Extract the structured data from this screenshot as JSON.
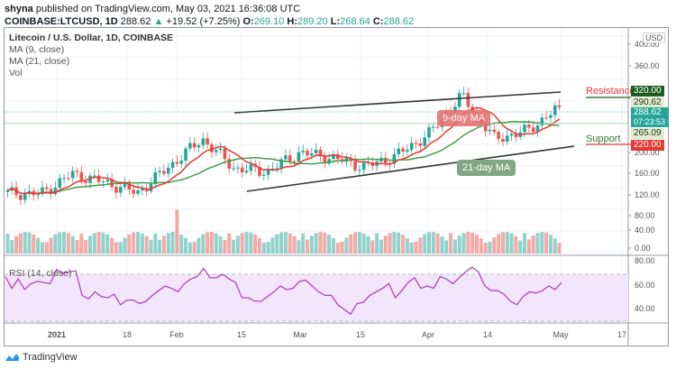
{
  "header": {
    "author": "shyna",
    "published_text": "published on TradingView.com, May 03, 2021 16:36:08 UTC",
    "symbol": "COINBASE:LTCUSD, 1D",
    "last": "288.62",
    "change": "+19.52 (+7.25%)",
    "open_label": "O:",
    "open": "269.10",
    "high_label": "H:",
    "high": "289.20",
    "low_label": "L:",
    "low": "268.64",
    "close_label": "C:",
    "close": "288.62"
  },
  "legend": {
    "title": "Litecoin / U.S. Dollar, 1D, COINBASE",
    "ma9": "MA (9, close)",
    "ma21": "MA (21, close)",
    "vol": "Vol",
    "rsi": "RSI (14, close)"
  },
  "annotations": {
    "resistance": "Resistance",
    "support": "Support",
    "ma9_callout": "9-day MA",
    "ma21_callout": "21-day MA"
  },
  "price_axis": {
    "currency": "USD",
    "ticks": [
      "400.00",
      "360.00",
      "200.00",
      "160.00",
      "120.00",
      "80.00",
      "40.00",
      "0.00"
    ],
    "resistance_tag": "320.00",
    "high_tag": "290.62",
    "last_tag": "288.62",
    "countdown": "07:23:53",
    "ma_tag": "265.09",
    "support_tag": "220.00"
  },
  "rsi_axis": {
    "ticks": [
      "80.00",
      "60.00",
      "40.00"
    ]
  },
  "time_axis": {
    "ticks": [
      "2021",
      "18",
      "Feb",
      "15",
      "Mar",
      "15",
      "Apr",
      "14",
      "May",
      "17"
    ]
  },
  "footer": {
    "brand": "TradingView"
  },
  "colors": {
    "up": "#26a69a",
    "down": "#ef5350",
    "ma9": "#e53935",
    "ma21": "#43a047",
    "rsi": "#ab47bc",
    "rsi_band": "#f3e5fc",
    "resistance": "#1b5e20",
    "support": "#e53935"
  },
  "chart_data": {
    "type": "candlestick",
    "title": "Litecoin / U.S. Dollar, 1D, COINBASE",
    "symbol": "LTCUSD",
    "timeframe": "1D",
    "x_ticks": [
      "2021",
      "18",
      "Feb",
      "15",
      "Mar",
      "15",
      "Apr",
      "14",
      "May",
      "17"
    ],
    "ylim": [
      0,
      420
    ],
    "last_close": 288.62,
    "ohlc_last": {
      "open": 269.1,
      "high": 289.2,
      "low": 268.64,
      "close": 288.62
    },
    "levels": {
      "resistance": 320.0,
      "support": 220.0,
      "high_marker": 290.62,
      "ma_marker": 265.09
    },
    "approx_close_series": [
      {
        "date": "2020-12-25",
        "close": 130
      },
      {
        "date": "2021-01-01",
        "close": 128
      },
      {
        "date": "2021-01-10",
        "close": 165
      },
      {
        "date": "2021-01-18",
        "close": 150
      },
      {
        "date": "2021-02-01",
        "close": 130
      },
      {
        "date": "2021-02-10",
        "close": 180
      },
      {
        "date": "2021-02-18",
        "close": 230
      },
      {
        "date": "2021-02-24",
        "close": 175
      },
      {
        "date": "2021-03-01",
        "close": 170
      },
      {
        "date": "2021-03-10",
        "close": 205
      },
      {
        "date": "2021-03-20",
        "close": 195
      },
      {
        "date": "2021-03-27",
        "close": 178
      },
      {
        "date": "2021-04-01",
        "close": 200
      },
      {
        "date": "2021-04-10",
        "close": 240
      },
      {
        "date": "2021-04-16",
        "close": 310
      },
      {
        "date": "2021-04-23",
        "close": 230
      },
      {
        "date": "2021-04-27",
        "close": 245
      },
      {
        "date": "2021-05-03",
        "close": 288.62
      }
    ],
    "indicators": {
      "ma9": "MA (9, close)",
      "ma21": "MA (21, close)",
      "rsi14": {
        "bands": [
          30,
          70
        ],
        "ylim": [
          20,
          85
        ],
        "last": 63,
        "approx_values": [
          68,
          58,
          66,
          57,
          62,
          64,
          63,
          62,
          74,
          71,
          72,
          73,
          52,
          49,
          55,
          51,
          50,
          53,
          44,
          48,
          48,
          45,
          47,
          52,
          56,
          60,
          58,
          55,
          62,
          66,
          68,
          75,
          67,
          67,
          70,
          66,
          63,
          50,
          50,
          47,
          47,
          51,
          55,
          60,
          57,
          58,
          64,
          65,
          60,
          55,
          52,
          52,
          44,
          40,
          36,
          45,
          46,
          52,
          55,
          58,
          62,
          50,
          56,
          63,
          67,
          58,
          60,
          58,
          68,
          66,
          62,
          67,
          72,
          76,
          72,
          60,
          56,
          56,
          53,
          47,
          44,
          51,
          55,
          54,
          56,
          60,
          57,
          63
        ]
      }
    },
    "volume_ylim": [
      0,
      1
    ]
  }
}
